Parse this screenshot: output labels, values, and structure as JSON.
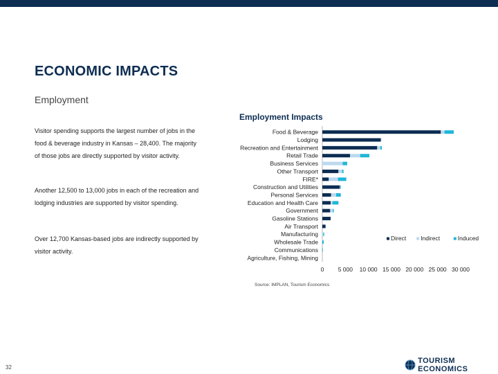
{
  "header": {
    "title": "ECONOMIC IMPACTS",
    "subtitle": "Employment"
  },
  "text": {
    "p1": "Visitor spending supports the largest number of jobs in the food & beverage industry in Kansas – 28,400. The majority of those jobs are directly supported by visitor activity.",
    "p2": "Another 12,500 to 13,000 jobs in each of the recreation and lodging industries are supported by visitor spending.",
    "p3": "Over 12,700 Kansas-based jobs are indirectly supported by visitor activity."
  },
  "footer": {
    "source": "Source: IMPLAN, Tourism Economics",
    "page_number": "32",
    "logo_text": "TOURISM ECONOMICS"
  },
  "colors": {
    "direct": "#0d2d52",
    "indirect": "#bcd9ee",
    "induced": "#1fb6d8",
    "brand": "#0d2d52"
  },
  "chart_data": {
    "type": "bar",
    "orientation": "horizontal",
    "stacked": true,
    "title": "Employment Impacts",
    "categories": [
      "Food & Beverage",
      "Lodging",
      "Recreation and Entertainment",
      "Retail Trade",
      "Business Services",
      "Other Transport",
      "FIRE*",
      "Construction and Utilities",
      "Personal Services",
      "Education and Health Care",
      "Government",
      "Gasoline Stations",
      "Air Transport",
      "Manufacturing",
      "Wholesale Trade",
      "Communications",
      "Agriculture, Fishing, Mining"
    ],
    "series": [
      {
        "name": "Direct",
        "values": [
          25700,
          12700,
          11900,
          6000,
          0,
          3500,
          1400,
          3800,
          1900,
          1800,
          1700,
          1800,
          700,
          0,
          0,
          0,
          0
        ]
      },
      {
        "name": "Indirect",
        "values": [
          800,
          100,
          700,
          2200,
          4400,
          800,
          2000,
          100,
          1100,
          400,
          600,
          0,
          0,
          200,
          0,
          0,
          0
        ]
      },
      {
        "name": "Induced",
        "values": [
          2000,
          0,
          300,
          2000,
          1000,
          300,
          1800,
          100,
          1000,
          1300,
          200,
          0,
          0,
          200,
          300,
          100,
          0
        ]
      }
    ],
    "xlim": [
      0,
      30000
    ],
    "xticks": [
      "0",
      "5 000",
      "10 000",
      "15 000",
      "20 000",
      "25 000",
      "30 000"
    ],
    "xtick_values": [
      0,
      5000,
      10000,
      15000,
      20000,
      25000,
      30000
    ],
    "legend": [
      "Direct",
      "Indirect",
      "Induced"
    ],
    "legend_position": "right",
    "grid": false
  }
}
